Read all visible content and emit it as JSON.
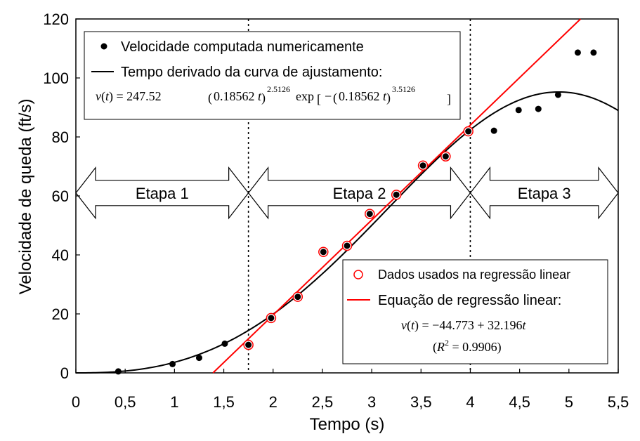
{
  "chart_data": {
    "type": "scatter",
    "xlabel": "Tempo (s)",
    "ylabel": "Velocidade de queda (ft/s)",
    "xlim": [
      0,
      5.5
    ],
    "ylim": [
      0,
      120
    ],
    "x_ticks": [
      0,
      0.5,
      1,
      1.5,
      2,
      2.5,
      3,
      3.5,
      4,
      4.5,
      5,
      5.5
    ],
    "x_tick_labels": [
      "0",
      "0,5",
      "1",
      "1,5",
      "2",
      "2,5",
      "3",
      "3,5",
      "4",
      "4,5",
      "5",
      "5,5"
    ],
    "y_ticks": [
      0,
      20,
      40,
      60,
      80,
      100,
      120
    ],
    "y_tick_labels": [
      "0",
      "20",
      "40",
      "60",
      "80",
      "100",
      "120"
    ],
    "series": [
      {
        "name": "Velocidade computada numericamente",
        "type": "scatter",
        "color": "#000000",
        "x": [
          0.43,
          0.98,
          1.25,
          1.51,
          1.75,
          1.98,
          2.25,
          2.51,
          2.75,
          2.98,
          3.25,
          3.52,
          3.75,
          3.98,
          4.24,
          4.49,
          4.69,
          4.89,
          5.09,
          5.25
        ],
        "y": [
          0.5,
          3.0,
          5.1,
          9.9,
          9.5,
          18.6,
          25.8,
          41.0,
          43.1,
          53.9,
          60.4,
          70.3,
          73.4,
          81.9,
          82.1,
          89.1,
          89.5,
          94.3,
          108.6,
          108.6
        ]
      },
      {
        "name": "Dados usados na regressão linear",
        "type": "scatter-open",
        "color": "#ff0000",
        "x": [
          1.75,
          1.98,
          2.25,
          2.51,
          2.75,
          2.98,
          3.25,
          3.52,
          3.75,
          3.98
        ],
        "y": [
          9.5,
          18.6,
          25.8,
          41.0,
          43.1,
          53.9,
          60.4,
          70.3,
          73.4,
          81.9
        ]
      },
      {
        "name": "Tempo derivado da curva de ajustamento:",
        "type": "curve",
        "color": "#000000",
        "formula": {
          "a": 247.52,
          "b": 0.18562,
          "p": 2.5126,
          "q": 3.5126
        }
      },
      {
        "name": "Equação de regressão linear:",
        "type": "line",
        "color": "#ff0000",
        "intercept": -44.773,
        "slope": 32.196
      }
    ],
    "stage_dividers": [
      1.75,
      4.0
    ],
    "stages": [
      {
        "label": "Etapa 1",
        "x_range": [
          0,
          1.75
        ],
        "y_center": 61
      },
      {
        "label": "Etapa 2",
        "x_range": [
          1.75,
          4.0
        ],
        "y_center": 61
      },
      {
        "label": "Etapa 3",
        "x_range": [
          4.0,
          5.5
        ],
        "y_center": 61
      }
    ],
    "legend_top": {
      "items": [
        "Velocidade computada numericamente",
        "Tempo derivado da curva de ajustamento:"
      ],
      "equation": {
        "lhs": "v(t) = 247.52",
        "part1": "(0.18562 t)",
        "exp1": "2.5126",
        "mid": "exp",
        "part2": "−(0.18562 t)",
        "exp2": "3.5126"
      }
    },
    "legend_bottom": {
      "items": [
        "Dados usados na regressão linear",
        "Equação de regressão linear:"
      ],
      "equation": "v(t) = −44.773 + 32.196t",
      "r2": "(R² = 0.9906)"
    }
  }
}
